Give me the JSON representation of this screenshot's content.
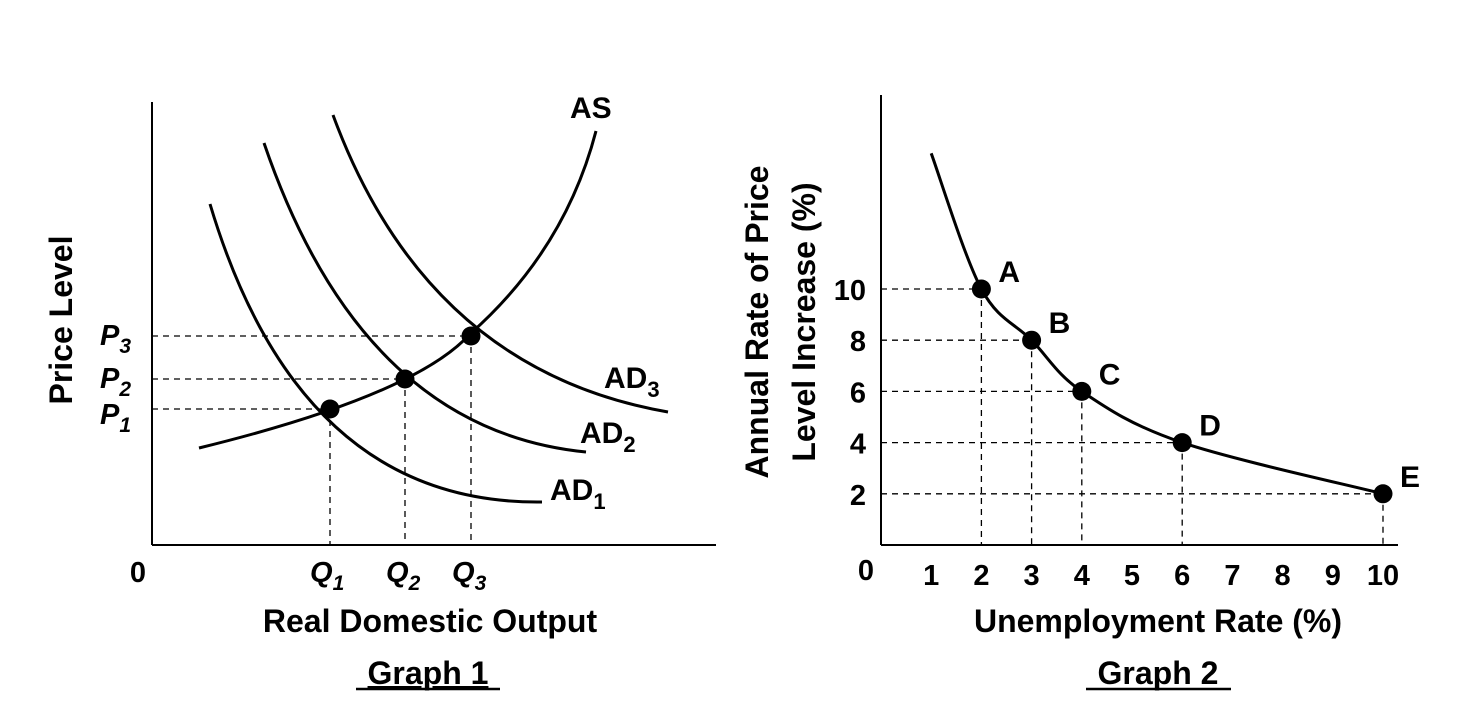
{
  "colors": {
    "ink": "#000000",
    "background": "#ffffff"
  },
  "chart_data": [
    {
      "type": "line",
      "title": "Graph 1",
      "xlabel": "Real Domestic Output",
      "ylabel": "Price Level",
      "origin_label": "0",
      "x_ticks": [
        {
          "base": "Q",
          "sub": "1"
        },
        {
          "base": "Q",
          "sub": "2"
        },
        {
          "base": "Q",
          "sub": "3"
        }
      ],
      "y_ticks": [
        {
          "base": "P",
          "sub": "3"
        },
        {
          "base": "P",
          "sub": "2"
        },
        {
          "base": "P",
          "sub": "1"
        }
      ],
      "series": [
        {
          "name": "AS",
          "label_base": "AS",
          "label_sub": ""
        },
        {
          "name": "AD1",
          "label_base": "AD",
          "label_sub": "1"
        },
        {
          "name": "AD2",
          "label_base": "AD",
          "label_sub": "2"
        },
        {
          "name": "AD3",
          "label_base": "AD",
          "label_sub": "3"
        }
      ],
      "equilibria": [
        {
          "x": "Q1",
          "y": "P1",
          "curves": [
            "AS",
            "AD1"
          ]
        },
        {
          "x": "Q2",
          "y": "P2",
          "curves": [
            "AS",
            "AD2"
          ]
        },
        {
          "x": "Q3",
          "y": "P3",
          "curves": [
            "AS",
            "AD3"
          ]
        }
      ],
      "grid": false
    },
    {
      "type": "line",
      "title": "Graph 2",
      "xlabel": "Unemployment Rate (%)",
      "ylabel_line1": "Annual Rate of Price",
      "ylabel_line2": "Level Increase (%)",
      "origin_label": "0",
      "x_tick_labels": [
        "1",
        "2",
        "3",
        "4",
        "5",
        "6",
        "7",
        "8",
        "9",
        "10"
      ],
      "y_tick_labels": [
        "10",
        "8",
        "6",
        "4",
        "2"
      ],
      "xlim": [
        0,
        10
      ],
      "ylim": [
        0,
        10
      ],
      "points": [
        {
          "label": "A",
          "x": 2,
          "y": 10
        },
        {
          "label": "B",
          "x": 3,
          "y": 8
        },
        {
          "label": "C",
          "x": 4,
          "y": 6
        },
        {
          "label": "D",
          "x": 6,
          "y": 4
        },
        {
          "label": "E",
          "x": 10,
          "y": 2
        }
      ],
      "curve_start": {
        "x": 1,
        "y": 15.3
      },
      "grid": false
    }
  ]
}
